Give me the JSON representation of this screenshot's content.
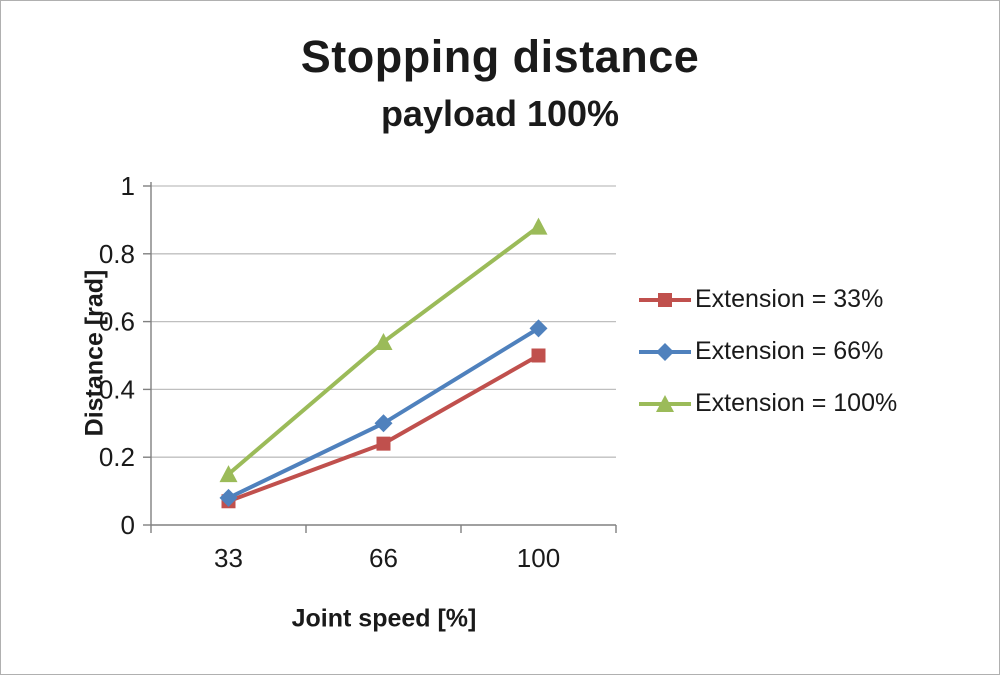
{
  "chart_data": {
    "type": "line",
    "title": "Stopping distance",
    "subtitle": "payload 100%",
    "xlabel": "Joint speed [%]",
    "ylabel": "Distance [rad]",
    "categories": [
      "33",
      "66",
      "100"
    ],
    "ylim": [
      0,
      1
    ],
    "yticks": [
      0,
      0.2,
      0.4,
      0.6,
      0.8,
      1
    ],
    "grid": "horizontal",
    "legend_position": "right",
    "series": [
      {
        "name": "Extension = 33%",
        "marker": "square",
        "color": "#C0504D",
        "values": [
          0.07,
          0.24,
          0.5
        ]
      },
      {
        "name": "Extension = 66%",
        "marker": "diamond",
        "color": "#4F81BD",
        "values": [
          0.08,
          0.3,
          0.58
        ]
      },
      {
        "name": "Extension = 100%",
        "marker": "triangle",
        "color": "#9BBB59",
        "values": [
          0.15,
          0.54,
          0.88
        ]
      }
    ]
  },
  "colors": {
    "grid": "#BFBFBF",
    "axis": "#808080",
    "text": "#1a1a1a"
  }
}
